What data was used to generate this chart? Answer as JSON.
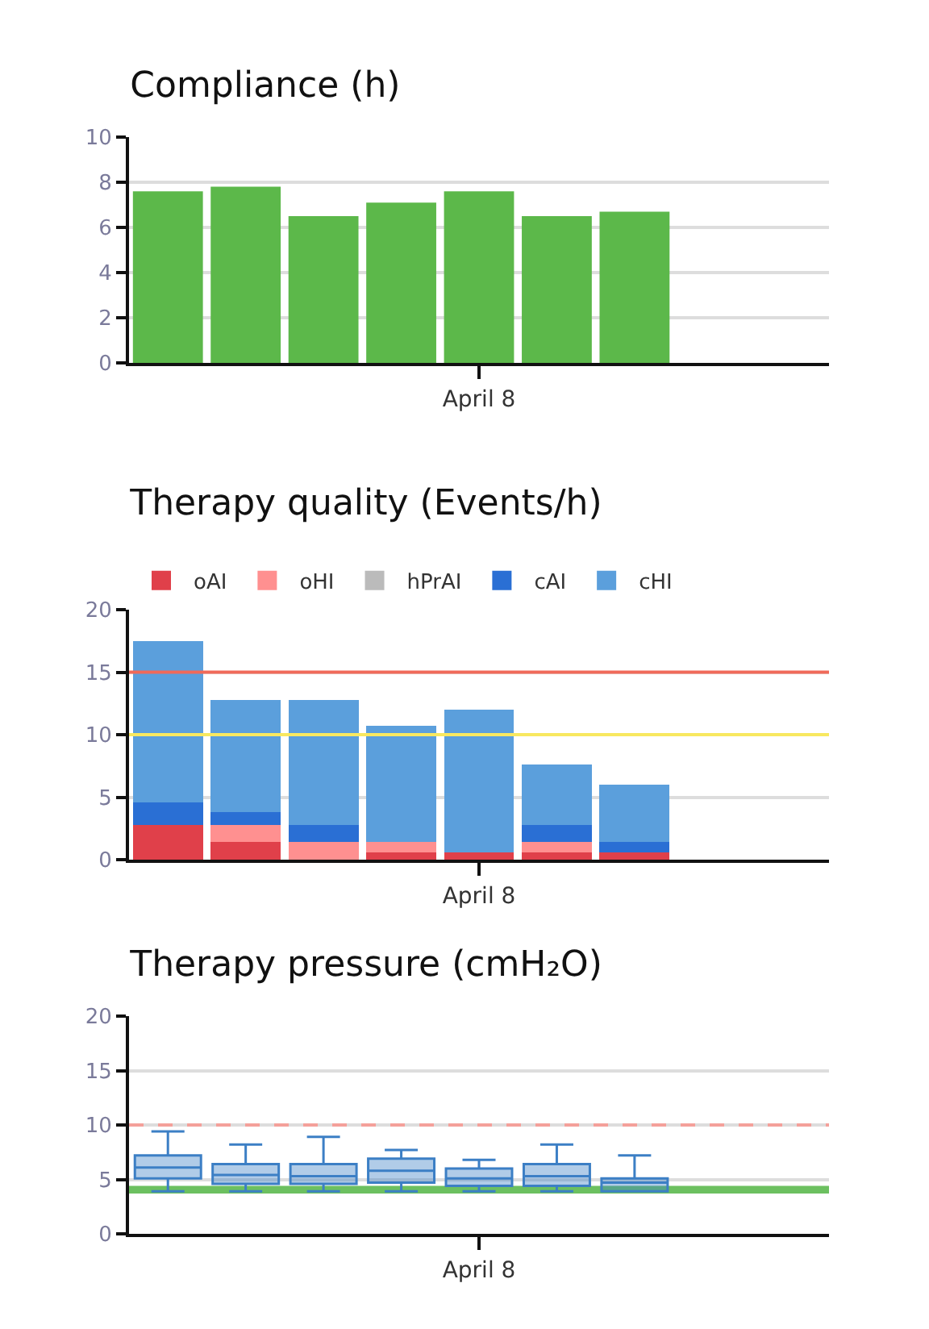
{
  "chart_data": [
    {
      "type": "bar",
      "title": "Compliance (h)",
      "categories": [
        null,
        null,
        null,
        null,
        "April 8",
        null,
        null,
        null,
        null
      ],
      "values": [
        7.6,
        7.8,
        6.5,
        7.1,
        7.6,
        6.5,
        6.7,
        null,
        null
      ],
      "color": "#5cb84a",
      "ylim": [
        0,
        10
      ],
      "yticks": [
        0,
        2,
        4,
        6,
        8,
        10
      ],
      "grid": "y",
      "legend": false
    },
    {
      "type": "bar",
      "title": "Therapy quality (Events/h)",
      "categories": [
        null,
        null,
        null,
        null,
        "April 8",
        null,
        null,
        null,
        null
      ],
      "stacked": true,
      "series": [
        {
          "name": "oAI",
          "color": "#e0404a",
          "values": [
            2.8,
            1.4,
            0,
            0.6,
            0.6,
            0.6,
            0.6,
            null,
            null
          ]
        },
        {
          "name": "oHI",
          "color": "#ff9090",
          "values": [
            0,
            1.4,
            1.4,
            0.8,
            0,
            0.8,
            0,
            null,
            null
          ]
        },
        {
          "name": "hPrAI",
          "color": "#bbbbbb",
          "values": [
            0,
            0,
            0,
            0,
            0,
            0,
            0,
            null,
            null
          ]
        },
        {
          "name": "cAI",
          "color": "#2a6fd4",
          "values": [
            1.8,
            1.0,
            1.4,
            0,
            0,
            1.4,
            0.8,
            null,
            null
          ]
        },
        {
          "name": "cHI",
          "color": "#5b9fdc",
          "values": [
            12.9,
            9.0,
            10.0,
            9.3,
            11.4,
            4.8,
            4.6,
            null,
            null
          ]
        }
      ],
      "ylim": [
        0,
        20
      ],
      "yticks": [
        0,
        5,
        10,
        15,
        20
      ],
      "grid": "y",
      "legend": "top",
      "ref_lines": [
        {
          "axis": "y",
          "value": 15,
          "color": "#f06a5a"
        },
        {
          "axis": "y",
          "value": 10,
          "color": "#f8e860"
        }
      ]
    },
    {
      "type": "box",
      "title": "Therapy pressure (cmH₂O)",
      "categories": [
        null,
        null,
        null,
        null,
        "April 8",
        null,
        null,
        null,
        null
      ],
      "series": [
        {
          "color": "#3c7fc5",
          "boxes": [
            {
              "low": 3.9,
              "q1": 5.1,
              "median": 6.1,
              "q3": 7.2,
              "high": 9.4
            },
            {
              "low": 3.9,
              "q1": 4.6,
              "median": 5.4,
              "q3": 6.4,
              "high": 8.2
            },
            {
              "low": 3.9,
              "q1": 4.6,
              "median": 5.3,
              "q3": 6.4,
              "high": 8.9
            },
            {
              "low": 3.9,
              "q1": 4.7,
              "median": 5.8,
              "q3": 6.9,
              "high": 7.7
            },
            {
              "low": 3.9,
              "q1": 4.4,
              "median": 5.1,
              "q3": 6.0,
              "high": 6.8
            },
            {
              "low": 3.9,
              "q1": 4.4,
              "median": 5.3,
              "q3": 6.4,
              "high": 8.2
            },
            {
              "low": 3.9,
              "q1": 3.9,
              "median": 4.7,
              "q3": 5.1,
              "high": 7.2
            },
            null,
            null
          ]
        }
      ],
      "ylim": [
        0,
        20
      ],
      "yticks": [
        0,
        5,
        10,
        15,
        20
      ],
      "grid": "y",
      "legend": false,
      "ref_lines": [
        {
          "axis": "y",
          "value": 10,
          "color": "#f4a09a",
          "line_style": "dashed"
        }
      ],
      "bands": [
        {
          "axis": "y",
          "from": 3.7,
          "to": 4.4,
          "color": "#6cc060"
        }
      ]
    }
  ]
}
